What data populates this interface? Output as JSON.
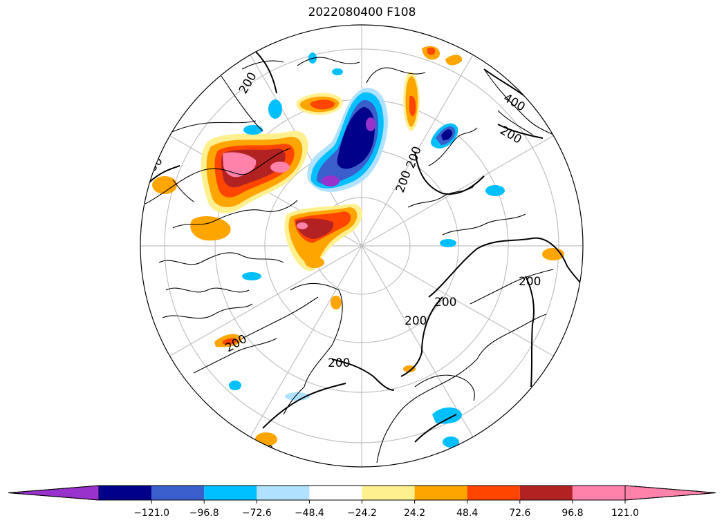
{
  "title": "2022080400 F108",
  "map": {
    "projection": "north-polar-stereographic",
    "contour_labels": [
      "200",
      "200",
      "200",
      "200",
      "200",
      "200",
      "200",
      "200",
      "400",
      "400",
      "200",
      "200"
    ]
  },
  "colorbar": {
    "ticks": [
      "−121.0",
      "−96.8",
      "−72.6",
      "−48.4",
      "−24.2",
      "24.2",
      "48.4",
      "72.6",
      "96.8",
      "121.0"
    ],
    "colors": {
      "under": "#9932cc",
      "bins": [
        "#00008b",
        "#3a5fcd",
        "#00bfff",
        "#b0e2ff",
        "#ffffff",
        "#fff08f",
        "#ffa500",
        "#ff4500",
        "#b22222",
        "#ff82ab"
      ],
      "over": "#ff82ab"
    }
  }
}
